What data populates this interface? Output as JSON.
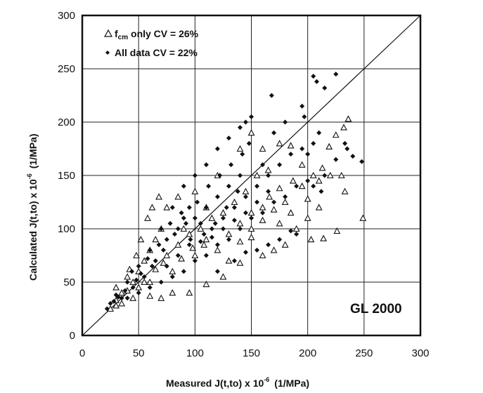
{
  "chart_data": {
    "type": "scatter",
    "title": "",
    "xlabel": "Measured J(t,to) x 10",
    "xlabel_exp": "-6",
    "xlabel_unit": "(1/MPa)",
    "ylabel": "Calculated J(t,to) x 10",
    "ylabel_exp": "-6",
    "ylabel_unit": "(1/MPa)",
    "xlim": [
      0,
      300
    ],
    "ylim": [
      0,
      300
    ],
    "xticks": [
      "0",
      "50",
      "100",
      "150",
      "200",
      "250",
      "300"
    ],
    "yticks": [
      "0",
      "50",
      "100",
      "150",
      "200",
      "250",
      "300"
    ],
    "grid": true,
    "legend_position": "top-left",
    "annotation": "GL 2000",
    "reference_line": "y = x",
    "series": [
      {
        "name": "fcm only CV = 26%",
        "legend_main": "f",
        "legend_sub": "cm",
        "legend_rest": " only CV = 26%",
        "marker": "open-triangle",
        "color": "#111111",
        "points": [
          [
            249,
            110
          ],
          [
            226,
            98
          ],
          [
            214,
            91
          ],
          [
            203,
            90
          ],
          [
            233,
            135
          ],
          [
            232,
            195
          ],
          [
            236,
            203
          ],
          [
            225,
            188
          ],
          [
            219,
            177
          ],
          [
            213,
            157
          ],
          [
            205,
            150
          ],
          [
            187,
            145
          ],
          [
            195,
            140
          ],
          [
            175,
            138
          ],
          [
            166,
            130
          ],
          [
            160,
            120
          ],
          [
            150,
            115
          ],
          [
            140,
            105
          ],
          [
            190,
            100
          ],
          [
            180,
            85
          ],
          [
            170,
            80
          ],
          [
            160,
            75
          ],
          [
            140,
            68
          ],
          [
            130,
            70
          ],
          [
            125,
            55
          ],
          [
            110,
            48
          ],
          [
            95,
            40
          ],
          [
            80,
            40
          ],
          [
            70,
            35
          ],
          [
            60,
            37
          ],
          [
            45,
            35
          ],
          [
            30,
            28
          ],
          [
            25,
            25
          ],
          [
            50,
            60
          ],
          [
            40,
            55
          ],
          [
            30,
            45
          ],
          [
            60,
            80
          ],
          [
            70,
            100
          ],
          [
            75,
            120
          ],
          [
            100,
            135
          ],
          [
            120,
            150
          ],
          [
            85,
            130
          ],
          [
            90,
            100
          ],
          [
            110,
            90
          ],
          [
            120,
            80
          ],
          [
            130,
            95
          ],
          [
            150,
            100
          ],
          [
            160,
            108
          ],
          [
            170,
            118
          ],
          [
            180,
            125
          ],
          [
            200,
            128
          ],
          [
            210,
            145
          ],
          [
            220,
            150
          ],
          [
            230,
            150
          ],
          [
            140,
            175
          ],
          [
            150,
            190
          ],
          [
            160,
            175
          ],
          [
            175,
            180
          ],
          [
            185,
            178
          ],
          [
            195,
            160
          ],
          [
            60,
            50
          ],
          [
            80,
            60
          ],
          [
            100,
            75
          ],
          [
            110,
            120
          ],
          [
            65,
            90
          ],
          [
            55,
            70
          ],
          [
            45,
            50
          ],
          [
            35,
            40
          ],
          [
            58,
            110
          ],
          [
            62,
            120
          ],
          [
            68,
            130
          ],
          [
            52,
            90
          ],
          [
            48,
            75
          ],
          [
            42,
            62
          ],
          [
            75,
            75
          ],
          [
            85,
            85
          ],
          [
            95,
            95
          ],
          [
            105,
            100
          ],
          [
            115,
            110
          ],
          [
            125,
            115
          ],
          [
            135,
            125
          ],
          [
            145,
            135
          ],
          [
            155,
            150
          ],
          [
            165,
            155
          ],
          [
            140,
            88
          ],
          [
            150,
            92
          ],
          [
            200,
            110
          ],
          [
            210,
            120
          ],
          [
            175,
            105
          ],
          [
            185,
            115
          ],
          [
            30,
            33
          ],
          [
            35,
            30
          ],
          [
            40,
            42
          ],
          [
            50,
            45
          ],
          [
            55,
            50
          ],
          [
            65,
            62
          ],
          [
            72,
            68
          ],
          [
            88,
            72
          ],
          [
            98,
            82
          ],
          [
            108,
            85
          ]
        ]
      },
      {
        "name": "All data CV = 22%",
        "marker": "filled-diamond",
        "color": "#111111",
        "points": [
          [
            225,
            245
          ],
          [
            205,
            243
          ],
          [
            208,
            238
          ],
          [
            215,
            232
          ],
          [
            195,
            215
          ],
          [
            197,
            205
          ],
          [
            168,
            225
          ],
          [
            150,
            205
          ],
          [
            145,
            200
          ],
          [
            140,
            195
          ],
          [
            130,
            185
          ],
          [
            120,
            175
          ],
          [
            110,
            160
          ],
          [
            100,
            150
          ],
          [
            90,
            140
          ],
          [
            80,
            120
          ],
          [
            70,
            100
          ],
          [
            60,
            80
          ],
          [
            50,
            65
          ],
          [
            40,
            50
          ],
          [
            30,
            38
          ],
          [
            25,
            30
          ],
          [
            22,
            25
          ],
          [
            180,
            200
          ],
          [
            170,
            190
          ],
          [
            160,
            160
          ],
          [
            200,
            170
          ],
          [
            240,
            168
          ],
          [
            248,
            163
          ],
          [
            235,
            175
          ],
          [
            233,
            180
          ],
          [
            225,
            165
          ],
          [
            215,
            150
          ],
          [
            200,
            145
          ],
          [
            190,
            140
          ],
          [
            180,
            130
          ],
          [
            170,
            125
          ],
          [
            160,
            115
          ],
          [
            150,
            110
          ],
          [
            140,
            100
          ],
          [
            130,
            90
          ],
          [
            120,
            85
          ],
          [
            110,
            75
          ],
          [
            100,
            70
          ],
          [
            90,
            60
          ],
          [
            80,
            55
          ],
          [
            70,
            50
          ],
          [
            60,
            45
          ],
          [
            50,
            40
          ],
          [
            40,
            35
          ],
          [
            190,
            95
          ],
          [
            185,
            98
          ],
          [
            175,
            90
          ],
          [
            165,
            85
          ],
          [
            155,
            80
          ],
          [
            145,
            78
          ],
          [
            135,
            70
          ],
          [
            120,
            60
          ],
          [
            205,
            140
          ],
          [
            212,
            135
          ],
          [
            100,
            110
          ],
          [
            110,
            120
          ],
          [
            120,
            130
          ],
          [
            130,
            140
          ],
          [
            140,
            150
          ],
          [
            95,
            120
          ],
          [
            85,
            100
          ],
          [
            75,
            90
          ],
          [
            65,
            70
          ],
          [
            55,
            55
          ],
          [
            45,
            45
          ],
          [
            35,
            35
          ],
          [
            90,
            110
          ],
          [
            105,
            105
          ],
          [
            115,
            100
          ],
          [
            125,
            110
          ],
          [
            135,
            120
          ],
          [
            145,
            130
          ],
          [
            155,
            140
          ],
          [
            165,
            150
          ],
          [
            175,
            160
          ],
          [
            185,
            170
          ],
          [
            195,
            175
          ],
          [
            205,
            180
          ],
          [
            210,
            190
          ],
          [
            78,
            105
          ],
          [
            82,
            95
          ],
          [
            88,
            115
          ],
          [
            92,
            105
          ],
          [
            96,
            90
          ],
          [
            102,
            125
          ],
          [
            108,
            95
          ],
          [
            112,
            140
          ],
          [
            118,
            105
          ],
          [
            122,
            150
          ],
          [
            128,
            120
          ],
          [
            132,
            160
          ],
          [
            138,
            135
          ],
          [
            142,
            170
          ],
          [
            148,
            180
          ],
          [
            68,
            85
          ],
          [
            72,
            80
          ],
          [
            62,
            65
          ],
          [
            58,
            72
          ],
          [
            52,
            58
          ],
          [
            48,
            52
          ],
          [
            44,
            60
          ],
          [
            38,
            42
          ],
          [
            32,
            36
          ],
          [
            28,
            32
          ],
          [
            75,
            65
          ],
          [
            85,
            75
          ],
          [
            95,
            85
          ],
          [
            105,
            88
          ],
          [
            115,
            92
          ],
          [
            125,
            100
          ],
          [
            135,
            108
          ],
          [
            145,
            115
          ],
          [
            155,
            125
          ],
          [
            165,
            135
          ]
        ]
      }
    ]
  }
}
